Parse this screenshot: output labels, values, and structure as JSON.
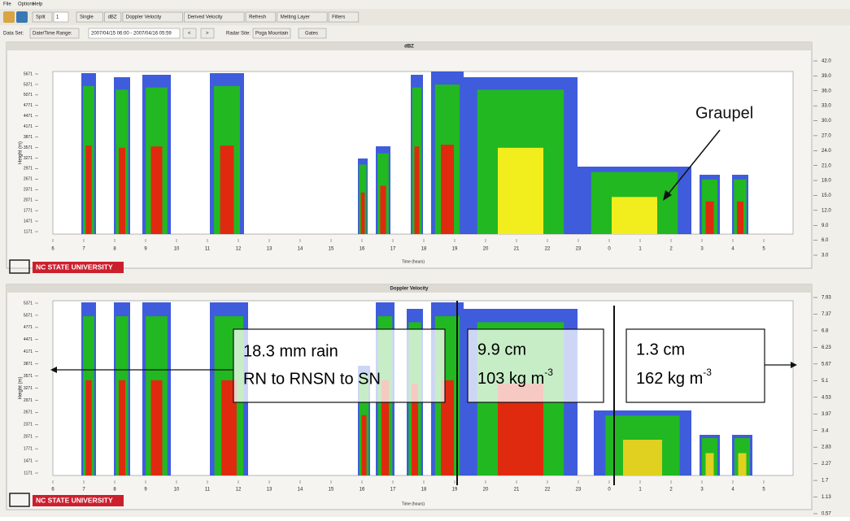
{
  "menu": [
    "File",
    "Options",
    "Help"
  ],
  "toolbar": {
    "split": "Split",
    "split_value": "1",
    "buttons": [
      "Single",
      "dBZ",
      "Doppler Velocity",
      "Derived Velocity",
      "Refresh",
      "Melting Layer",
      "Filters"
    ]
  },
  "dataset": {
    "label": "Data Set:",
    "range_button": "Date/Time Range:",
    "range": "2007/04/15 06:00 - 2007/04/16 05:59",
    "prev": "<",
    "next": ">",
    "site_label": "Radar Site:",
    "site": "Poga Mountain",
    "gates": "Gates"
  },
  "panels": [
    {
      "title": "dBZ",
      "y_label": "Height (m)",
      "x_label": "Time (hours)",
      "logo": "NC STATE UNIVERSITY",
      "y_ticks": [
        "5671",
        "5371",
        "5071",
        "4771",
        "4471",
        "4171",
        "3871",
        "3571",
        "3271",
        "2971",
        "2671",
        "2371",
        "2071",
        "1771",
        "1471",
        "1171"
      ],
      "x_ticks": [
        "6",
        "7",
        "8",
        "9",
        "10",
        "11",
        "12",
        "13",
        "14",
        "15",
        "16",
        "17",
        "18",
        "19",
        "20",
        "21",
        "22",
        "23",
        "0",
        "1",
        "2",
        "3",
        "4",
        "5"
      ],
      "colorbar": [
        "42.0",
        "39.0",
        "36.0",
        "33.0",
        "30.0",
        "27.0",
        "24.0",
        "21.0",
        "18.0",
        "15.0",
        "12.0",
        "9.0",
        "6.0",
        "3.0"
      ],
      "annotation": "Graupel"
    },
    {
      "title": "Doppler Velocity",
      "y_label": "Height (m)",
      "x_label": "Time (hours)",
      "logo": "NC STATE UNIVERSITY",
      "y_ticks": [
        "5371",
        "5071",
        "4771",
        "4471",
        "4171",
        "3871",
        "3571",
        "3271",
        "2971",
        "2671",
        "2371",
        "2071",
        "1771",
        "1471",
        "1171"
      ],
      "x_ticks": [
        "6",
        "7",
        "8",
        "9",
        "10",
        "11",
        "12",
        "13",
        "14",
        "15",
        "16",
        "17",
        "18",
        "19",
        "20",
        "21",
        "22",
        "23",
        "0",
        "1",
        "2",
        "3",
        "4",
        "5"
      ],
      "colorbar": [
        "7.93",
        "7.37",
        "6.8",
        "6.23",
        "5.67",
        "5.1",
        "4.53",
        "3.97",
        "3.4",
        "2.83",
        "2.27",
        "1.7",
        "1.13",
        "0.57"
      ],
      "boxes": [
        {
          "lines": [
            "18.3 mm rain",
            "RN to RNSN to SN"
          ]
        },
        {
          "line1": "9.9 cm",
          "line2": "103 kg m",
          "sup": "-3"
        },
        {
          "line1": "1.3 cm",
          "line2": "162 kg m",
          "sup": "-3"
        }
      ]
    }
  ]
}
